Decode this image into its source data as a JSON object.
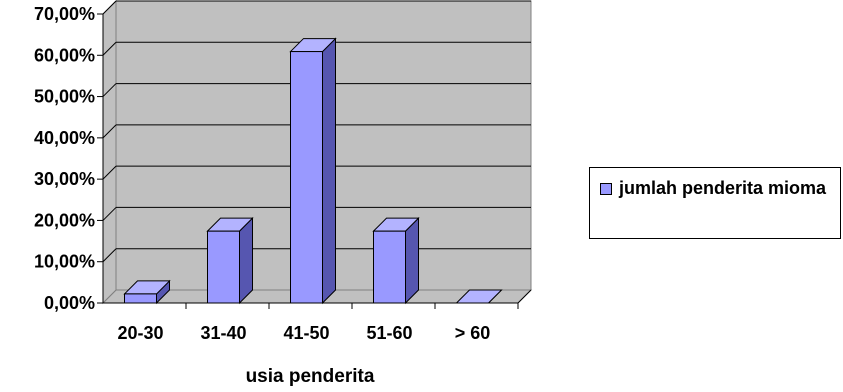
{
  "chart_data": {
    "type": "bar",
    "categories": [
      "20-30",
      "31-40",
      "41-50",
      "51-60",
      "> 60"
    ],
    "series": [
      {
        "name": "jumlah penderita mioma",
        "values": [
          2.2,
          17.4,
          60.9,
          17.4,
          0
        ]
      }
    ],
    "xlabel": "usia penderita",
    "ylabel": "",
    "ylim": [
      0,
      70
    ],
    "yticks": [
      "0,00%",
      "10,00%",
      "20,00%",
      "30,00%",
      "40,00%",
      "50,00%",
      "60,00%",
      "70,00%"
    ],
    "grid": true,
    "legend": "right",
    "colors": {
      "bar_front": "#9999ff",
      "bar_side": "#5656b0",
      "bar_top": "#b3b3ff",
      "plot_bg": "#c0c0c0",
      "grid": "#000000"
    }
  }
}
